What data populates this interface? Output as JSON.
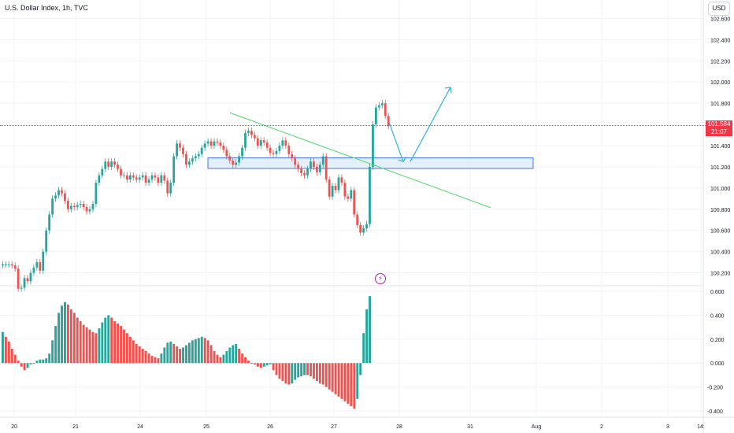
{
  "header": {
    "title": "U.S. Dollar Index, 1h, TVC",
    "currency_button": "USD"
  },
  "price_tag": {
    "price": "101.584",
    "countdown": "21:07",
    "color": "#f23645"
  },
  "colors": {
    "up": "#26a69a",
    "down": "#ef5350",
    "trendline": "#4cd964",
    "arrow": "#29b6d6",
    "zone_fill": "#e3f0fb",
    "zone_border": "#1e53e5"
  },
  "icons": {
    "event_marker": "lightning-icon"
  },
  "chart_data": [
    {
      "type": "candlestick",
      "pane": "price",
      "y_ticks": [
        "102.600",
        "102.400",
        "102.200",
        "102.000",
        "101.800",
        "101.400",
        "101.200",
        "101.000",
        "100.800",
        "100.600",
        "100.400",
        "100.200"
      ],
      "ylim": [
        100.1,
        102.7
      ],
      "x_ticks": [
        "20",
        "21",
        "24",
        "25",
        "26",
        "27",
        "28",
        "31",
        "Aug",
        "2",
        "3",
        "14:"
      ],
      "annotations": {
        "support_zone": [
          101.185,
          101.285
        ],
        "trendline": [
          {
            "x": 292,
            "y": 101.71
          },
          {
            "x": 623,
            "y": 100.815
          }
        ],
        "projection_arrow": [
          [
            494,
            101.62
          ],
          [
            512,
            101.25
          ],
          [
            521,
            101.25
          ],
          [
            572,
            101.95
          ]
        ],
        "current_price": 101.584
      },
      "closes": [
        100.28,
        100.28,
        100.28,
        100.27,
        100.24,
        100.05,
        100.06,
        100.15,
        100.12,
        100.2,
        100.25,
        100.3,
        100.22,
        100.4,
        100.6,
        100.75,
        100.9,
        100.93,
        100.98,
        100.95,
        100.88,
        100.8,
        100.83,
        100.82,
        100.84,
        100.85,
        100.82,
        100.78,
        100.8,
        100.85,
        101.05,
        101.12,
        101.18,
        101.25,
        101.2,
        101.25,
        101.22,
        101.18,
        101.12,
        101.12,
        101.08,
        101.12,
        101.1,
        101.08,
        101.1,
        101.12,
        101.05,
        101.08,
        101.12,
        101.1,
        101.05,
        101.12,
        101.07,
        100.95,
        101.05,
        101.3,
        101.42,
        101.38,
        101.32,
        101.22,
        101.25,
        101.28,
        101.3,
        101.32,
        101.38,
        101.42,
        101.44,
        101.4,
        101.44,
        101.43,
        101.4,
        101.36,
        101.3,
        101.26,
        101.22,
        101.24,
        101.3,
        101.38,
        101.52,
        101.54,
        101.5,
        101.47,
        101.4,
        101.45,
        101.43,
        101.38,
        101.33,
        101.32,
        101.35,
        101.4,
        101.45,
        101.4,
        101.32,
        101.28,
        101.22,
        101.18,
        101.14,
        101.12,
        101.18,
        101.25,
        101.2,
        101.15,
        101.22,
        101.3,
        101.08,
        100.92,
        101.02,
        100.98,
        101.1,
        101.05,
        100.92,
        100.9,
        100.98,
        100.75,
        100.65,
        100.58,
        100.62,
        100.66,
        101.2,
        101.6,
        101.76,
        101.78,
        101.8,
        101.68,
        101.584
      ]
    },
    {
      "type": "histogram",
      "pane": "oscillator",
      "y_ticks": [
        "0.600",
        "0.400",
        "0.200",
        "0.000",
        "-0.200",
        "-0.400"
      ],
      "ylim": [
        -0.42,
        0.62
      ],
      "values": [
        0.26,
        0.22,
        0.18,
        0.12,
        0.07,
        0.02,
        -0.03,
        -0.06,
        -0.04,
        -0.01,
        0.0,
        0.02,
        0.03,
        0.03,
        0.04,
        0.08,
        0.19,
        0.31,
        0.42,
        0.48,
        0.51,
        0.49,
        0.45,
        0.42,
        0.38,
        0.35,
        0.32,
        0.3,
        0.28,
        0.26,
        0.25,
        0.29,
        0.34,
        0.38,
        0.4,
        0.38,
        0.35,
        0.33,
        0.31,
        0.28,
        0.25,
        0.22,
        0.19,
        0.16,
        0.14,
        0.12,
        0.1,
        0.08,
        0.06,
        0.05,
        0.04,
        0.08,
        0.13,
        0.17,
        0.18,
        0.16,
        0.14,
        0.12,
        0.13,
        0.15,
        0.17,
        0.19,
        0.2,
        0.21,
        0.22,
        0.21,
        0.19,
        0.15,
        0.1,
        0.07,
        0.05,
        0.07,
        0.1,
        0.13,
        0.15,
        0.16,
        0.12,
        0.08,
        0.05,
        0.02,
        0.0,
        -0.01,
        -0.03,
        -0.04,
        -0.03,
        -0.02,
        -0.01,
        -0.06,
        -0.1,
        -0.13,
        -0.15,
        -0.17,
        -0.18,
        -0.17,
        -0.14,
        -0.12,
        -0.11,
        -0.1,
        -0.1,
        -0.11,
        -0.13,
        -0.15,
        -0.17,
        -0.18,
        -0.2,
        -0.22,
        -0.24,
        -0.26,
        -0.28,
        -0.3,
        -0.32,
        -0.34,
        -0.36,
        -0.38,
        -0.3,
        -0.1,
        0.25,
        0.45,
        0.56
      ]
    }
  ]
}
